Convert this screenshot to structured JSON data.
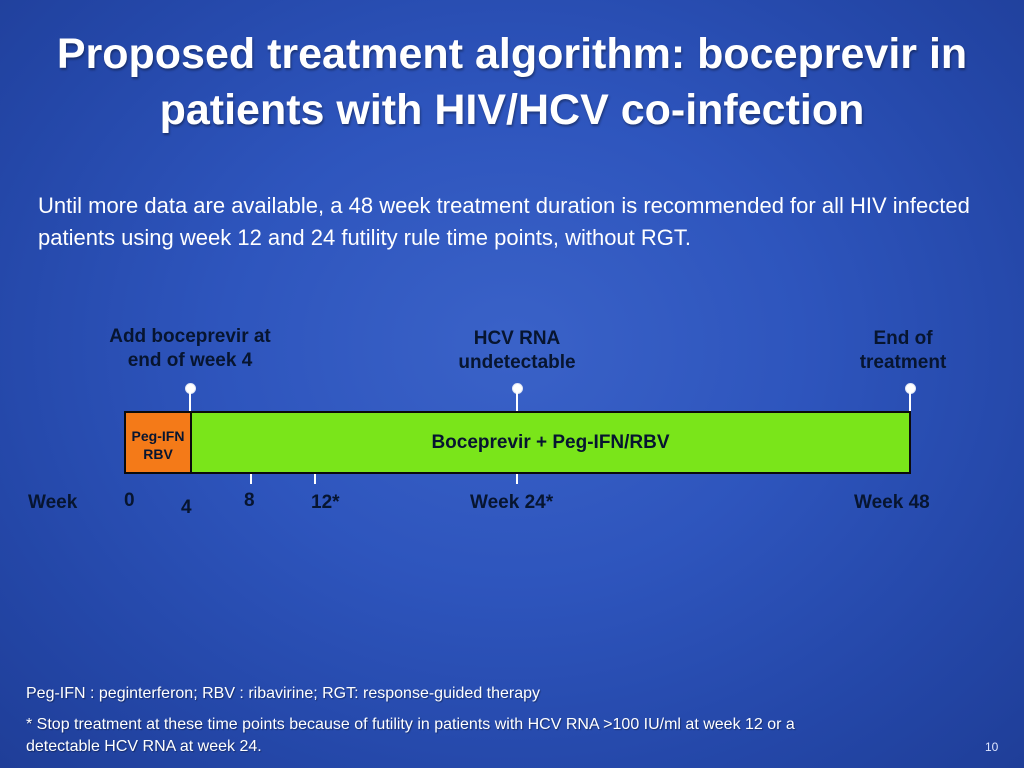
{
  "slide": {
    "title_line1": "Proposed treatment algorithm: boceprevir in",
    "title_line2": "patients with HIV/HCV co-infection",
    "intro": "Until more data are available, a 48 week treatment duration is recommended for all HIV infected patients using week 12 and 24 futility rule time points, without RGT.",
    "page_number": "10"
  },
  "timeline": {
    "milestones": [
      {
        "line1": "Add boceprevir at",
        "line2": "end of week 4"
      },
      {
        "line1": "HCV RNA",
        "line2": "undetectable"
      },
      {
        "line1": "End of",
        "line2": "treatment"
      }
    ],
    "segments": [
      {
        "line1": "Peg-IFN",
        "line2": "RBV",
        "color": "#f47a18"
      },
      {
        "label": "Boceprevir + Peg-IFN/RBV",
        "color": "#7ae51a"
      }
    ],
    "week_label": "Week",
    "ticks": [
      "0",
      "4",
      "8",
      "12*",
      "Week 24*",
      "Week 48"
    ]
  },
  "footnotes": {
    "abbreviations": "Peg-IFN : peginterferon; RBV : ribavirine; RGT: response-guided therapy",
    "futility_line1": "* Stop treatment at these time points because of futility in patients with HCV RNA >100 IU/ml at week 12 or a",
    "futility_line2": "detectable HCV RNA at week 24."
  }
}
